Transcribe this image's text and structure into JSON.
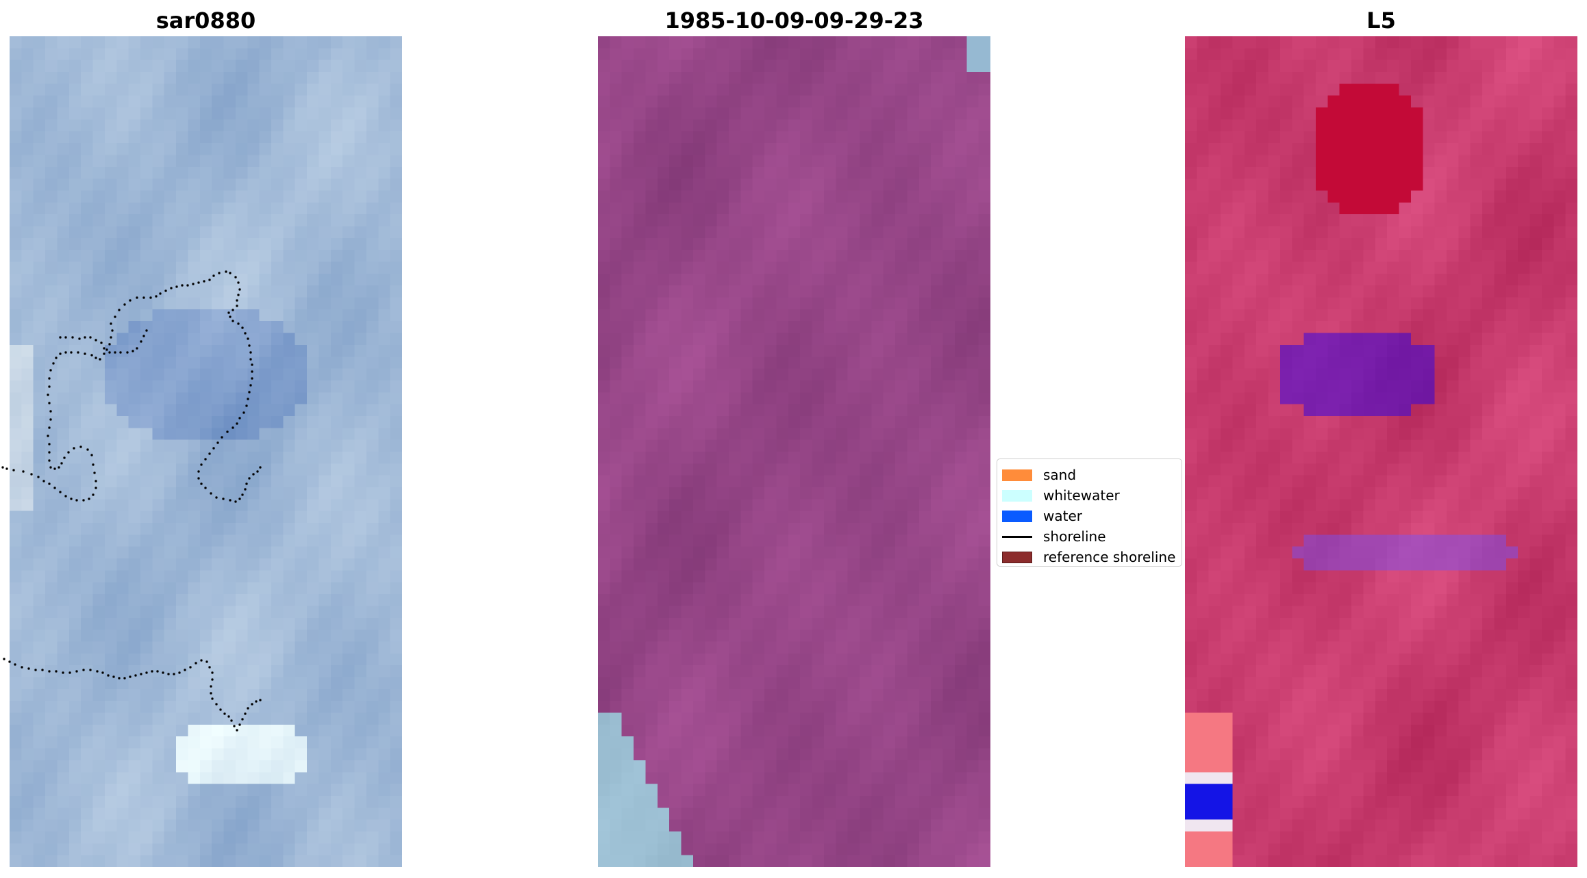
{
  "panels": [
    {
      "title": "sar0880",
      "scheme": "sar"
    },
    {
      "title": "1985-10-09-09-29-23",
      "scheme": "false_color"
    },
    {
      "title": "L5",
      "scheme": "index"
    }
  ],
  "legend": {
    "items": [
      {
        "label": "sand",
        "color": "#ff8c3a",
        "kind": "patch"
      },
      {
        "label": "whitewater",
        "color": "#ccffff",
        "kind": "patch"
      },
      {
        "label": "water",
        "color": "#0a5bff",
        "kind": "patch"
      },
      {
        "label": "shoreline",
        "color": "#000000",
        "kind": "line"
      },
      {
        "label": "reference shoreline",
        "color": "#8c2d2d",
        "kind": "patch"
      }
    ]
  },
  "colors": {
    "shoreline_dots": "#000000"
  }
}
